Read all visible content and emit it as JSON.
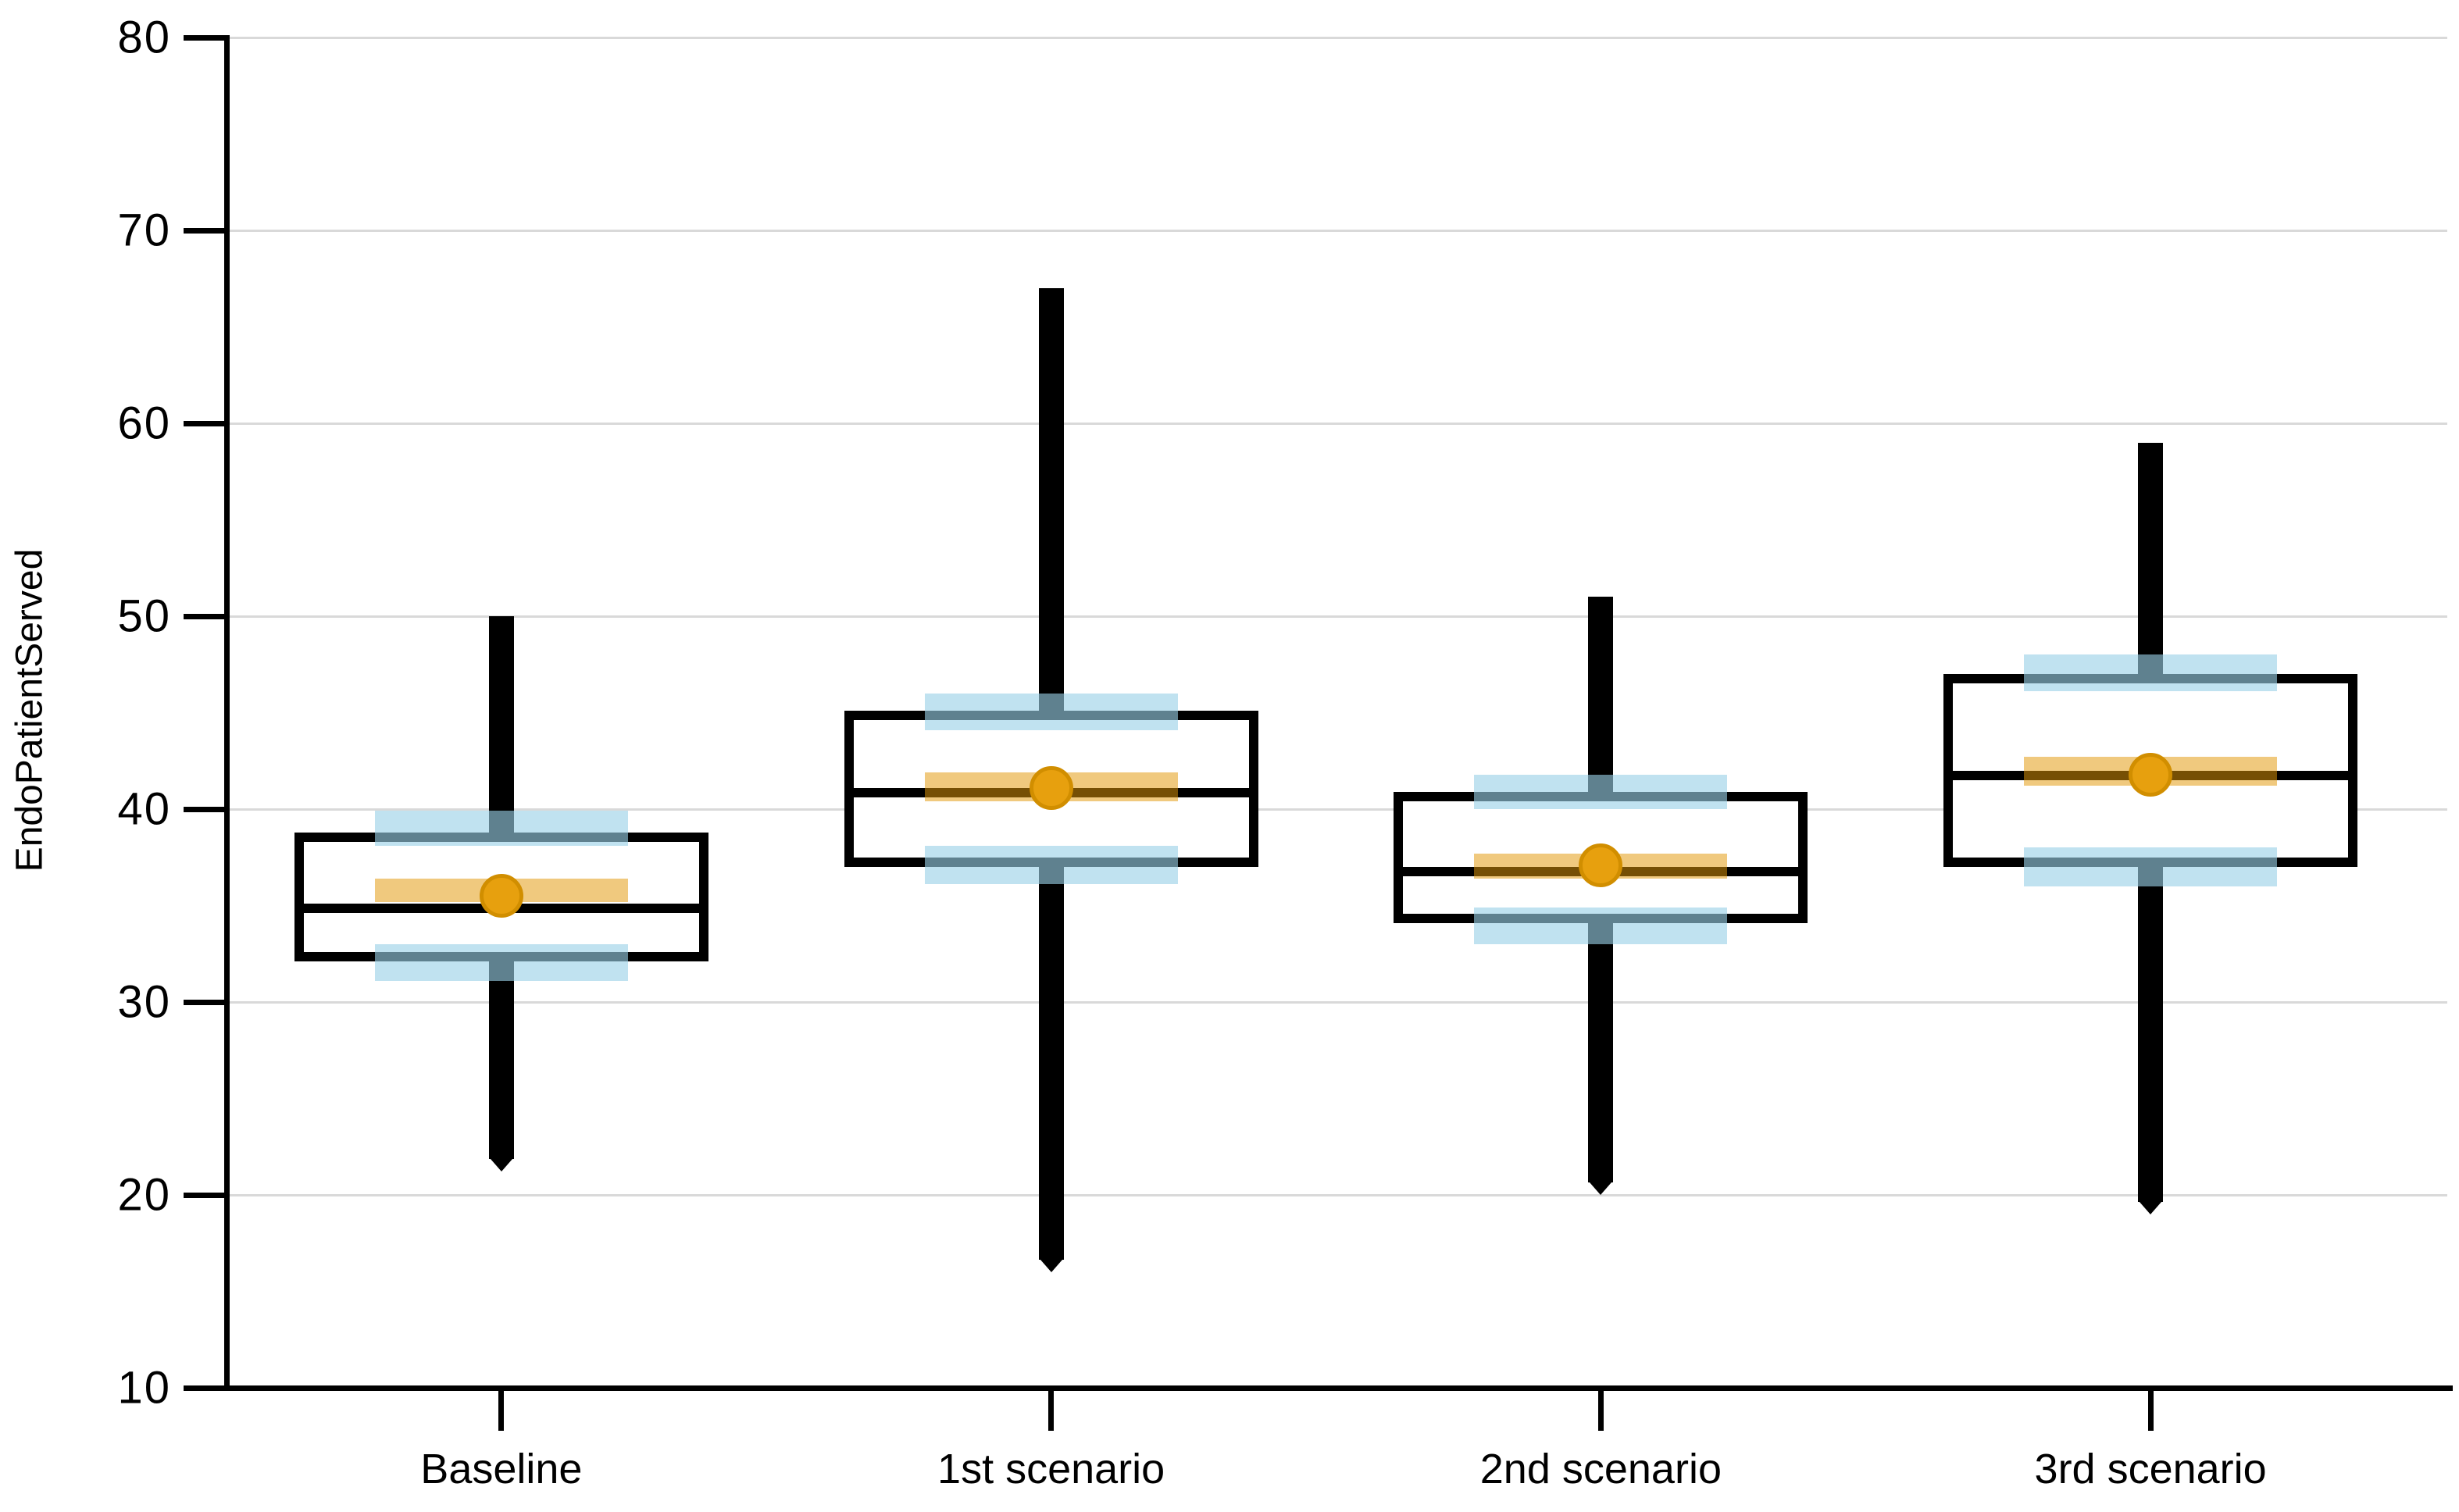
{
  "chart_data": {
    "type": "box",
    "title": "",
    "xlabel": "",
    "ylabel": "EndoPatientServed",
    "ylim": [
      10,
      80
    ],
    "yticks": [
      80,
      70,
      60,
      50,
      40,
      30,
      20,
      10
    ],
    "grid": true,
    "legend": false,
    "categories": [
      "Baseline",
      "1st scenario",
      "2nd scenario",
      "3rd scenario"
    ],
    "series": [
      {
        "name": "Baseline",
        "min": 21.2,
        "q1": 32.1,
        "median": 35.1,
        "mean": 35.5,
        "q3": 38.8,
        "max": 50,
        "mean_ci": [
          35.2,
          36.4
        ],
        "q1_ci": [
          31.1,
          33.0
        ],
        "q3_ci": [
          38.1,
          39.9
        ]
      },
      {
        "name": "1st scenario",
        "min": 16,
        "q1": 37.0,
        "median": 41.1,
        "mean": 41.1,
        "q3": 45.1,
        "max": 67,
        "mean_ci": [
          40.4,
          41.9
        ],
        "q1_ci": [
          36.1,
          38.1
        ],
        "q3_ci": [
          44.1,
          46.0
        ]
      },
      {
        "name": "2nd scenario",
        "min": 20,
        "q1": 34.1,
        "median": 37.0,
        "mean": 37.1,
        "q3": 40.9,
        "max": 51,
        "mean_ci": [
          36.4,
          37.7
        ],
        "q1_ci": [
          33.0,
          34.9
        ],
        "q3_ci": [
          40.0,
          41.8
        ]
      },
      {
        "name": "3rd scenario",
        "min": 19,
        "q1": 37.0,
        "median": 42.0,
        "mean": 41.8,
        "q3": 47.0,
        "max": 59,
        "mean_ci": [
          41.2,
          42.7
        ],
        "q1_ci": [
          36.0,
          38.0
        ],
        "q3_ci": [
          46.1,
          48.0
        ]
      }
    ],
    "colors": {
      "whisker": "#000000",
      "box_border": "#000000",
      "box_fill": "#ffffff",
      "median": "#000000",
      "gridline": "#d9d9d9",
      "axis": "#000000",
      "mean_dot": "#e7a00e",
      "mean_dot_edge": "#d18e00",
      "mean_band": "rgba(226,152,8,0.52)",
      "quartile_band": "rgba(154,209,231,0.62)"
    }
  }
}
